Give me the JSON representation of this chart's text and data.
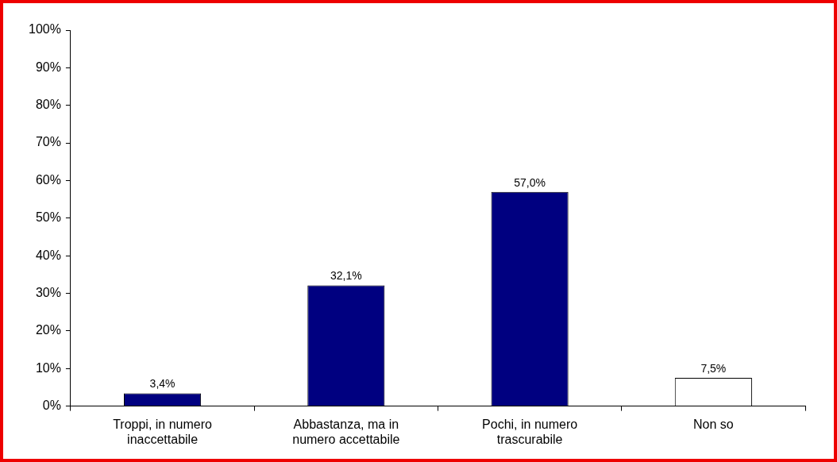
{
  "chart_data": {
    "type": "bar",
    "categories": [
      "Troppi, in numero inaccettabile",
      "Abbastanza, ma in numero accettabile",
      "Pochi, in numero trascurabile",
      "Non so"
    ],
    "values": [
      3.4,
      32.1,
      57.0,
      7.5
    ],
    "colors": [
      "#000080",
      "#000080",
      "#000080",
      "#ffffff"
    ],
    "value_labels": [
      "3,4%",
      "32,1%",
      "57,0%",
      "7,5%"
    ],
    "ylim": [
      0,
      100
    ],
    "yticks": [
      {
        "value": 0,
        "label": "0%"
      },
      {
        "value": 10,
        "label": "10%"
      },
      {
        "value": 20,
        "label": "20%"
      },
      {
        "value": 30,
        "label": "30%"
      },
      {
        "value": 40,
        "label": "40%"
      },
      {
        "value": 50,
        "label": "50%"
      },
      {
        "value": 60,
        "label": "60%"
      },
      {
        "value": 70,
        "label": "70%"
      },
      {
        "value": 80,
        "label": "80%"
      },
      {
        "value": 90,
        "label": "90%"
      },
      {
        "value": 100,
        "label": "100%"
      }
    ],
    "grid": false,
    "legend": false
  }
}
